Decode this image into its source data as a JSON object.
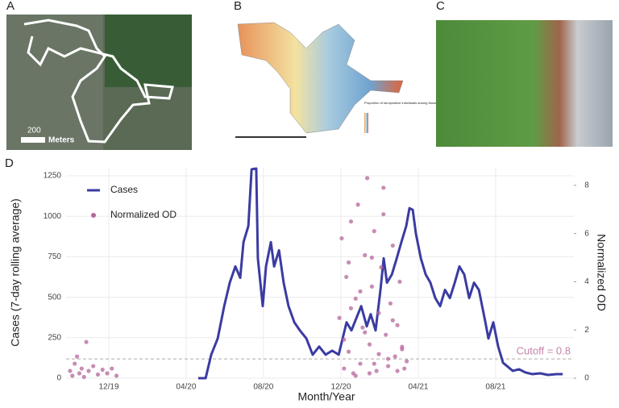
{
  "panels": {
    "a": {
      "label": "A",
      "scale_value": "200",
      "scale_unit": "Meters"
    },
    "b": {
      "label": "B",
      "legend_title": "Proportion of seropositive individuals among those tested"
    },
    "c": {
      "label": "C"
    },
    "d": {
      "label": "D"
    }
  },
  "chart_data": {
    "type": "line",
    "x_label": "Month/Year",
    "y_label": "Cases (7-day rolling average)",
    "y2_label": "Normalized OD",
    "xlim": [
      2019.733,
      2021.92
    ],
    "xticks": [
      {
        "value": 2019.917,
        "label": "12/19"
      },
      {
        "value": 2020.25,
        "label": "04/20"
      },
      {
        "value": 2020.583,
        "label": "08/20"
      },
      {
        "value": 2020.917,
        "label": "12/20"
      },
      {
        "value": 2021.25,
        "label": "04/21"
      },
      {
        "value": 2021.583,
        "label": "08/21"
      }
    ],
    "ylim": [
      0,
      1300
    ],
    "yticks": [
      0,
      250,
      500,
      750,
      1000,
      1250
    ],
    "y2lim": [
      0,
      8.73
    ],
    "y2ticks": [
      0,
      2,
      4,
      6,
      8
    ],
    "grid": true,
    "cutoff": {
      "value": 0.8,
      "label": "Cutoff = 0.8"
    },
    "series": [
      {
        "name": "Cases",
        "type": "line",
        "color": "#3b3ba3",
        "x": [
          2020.302,
          2020.334,
          2020.358,
          2020.386,
          2020.414,
          2020.438,
          2020.462,
          2020.483,
          2020.497,
          2020.518,
          2020.532,
          2020.552,
          2020.559,
          2020.58,
          2020.594,
          2020.615,
          2020.629,
          2020.65,
          2020.67,
          2020.691,
          2020.716,
          2020.74,
          2020.768,
          2020.795,
          2020.823,
          2020.851,
          2020.879,
          2020.907,
          2020.924,
          2020.941,
          2020.962,
          2020.983,
          2021.004,
          2021.028,
          2021.045,
          2021.066,
          2021.087,
          2021.101,
          2021.115,
          2021.136,
          2021.157,
          2021.177,
          2021.198,
          2021.212,
          2021.226,
          2021.24,
          2021.261,
          2021.282,
          2021.302,
          2021.323,
          2021.344,
          2021.365,
          2021.386,
          2021.407,
          2021.427,
          2021.448,
          2021.469,
          2021.49,
          2021.511,
          2021.525,
          2021.539,
          2021.552,
          2021.573,
          2021.594,
          2021.615,
          2021.636,
          2021.657,
          2021.684,
          2021.712,
          2021.74,
          2021.775,
          2021.809,
          2021.844,
          2021.872
        ],
        "values": [
          0,
          0,
          145,
          245,
          445,
          590,
          690,
          620,
          840,
          940,
          1290,
          1295,
          740,
          445,
          690,
          840,
          690,
          790,
          590,
          445,
          345,
          295,
          245,
          145,
          195,
          145,
          170,
          145,
          245,
          345,
          295,
          370,
          445,
          320,
          395,
          295,
          545,
          740,
          590,
          640,
          740,
          840,
          940,
          1050,
          1040,
          890,
          740,
          640,
          590,
          495,
          445,
          545,
          495,
          590,
          690,
          640,
          495,
          590,
          545,
          445,
          345,
          245,
          345,
          195,
          95,
          70,
          45,
          55,
          35,
          25,
          30,
          20,
          25,
          25
        ]
      },
      {
        "name": "Normalized OD",
        "type": "scatter",
        "axis": "y2",
        "color": "#b5669a",
        "x": [
          2019.75,
          2019.76,
          2019.77,
          2019.78,
          2019.79,
          2019.8,
          2019.81,
          2019.82,
          2019.83,
          2019.85,
          2019.87,
          2019.89,
          2019.91,
          2019.93,
          2019.95,
          2020.91,
          2020.92,
          2020.93,
          2020.94,
          2020.95,
          2020.96,
          2020.97,
          2020.98,
          2020.99,
          2021.0,
          2021.01,
          2021.02,
          2021.03,
          2021.04,
          2021.05,
          2021.06,
          2021.07,
          2021.08,
          2021.09,
          2021.1,
          2021.11,
          2021.12,
          2021.13,
          2021.14,
          2021.15,
          2021.16,
          2021.17,
          2021.18,
          2021.19,
          2021.2,
          2020.93,
          2020.96,
          2021.0,
          2021.04,
          2021.08,
          2021.12,
          2021.16,
          2021.05,
          2021.1,
          2021.02,
          2020.98,
          2021.14,
          2021.06,
          2021.18,
          2020.95
        ],
        "values": [
          0.3,
          0.1,
          0.6,
          0.9,
          0.2,
          0.4,
          0.05,
          1.5,
          0.3,
          0.5,
          0.15,
          0.35,
          0.2,
          0.4,
          0.1,
          2.5,
          5.8,
          0.4,
          4.2,
          1.1,
          6.5,
          0.2,
          3.3,
          7.2,
          0.6,
          2.1,
          5.1,
          8.3,
          1.4,
          3.8,
          6.1,
          0.3,
          2.7,
          4.6,
          7.9,
          1.8,
          0.5,
          3.1,
          5.5,
          0.9,
          2.2,
          4.0,
          1.2,
          0.4,
          0.7,
          1.6,
          2.9,
          3.6,
          0.2,
          1.0,
          0.8,
          0.3,
          5.0,
          6.8,
          1.9,
          0.1,
          2.4,
          0.6,
          1.3,
          4.8
        ]
      }
    ]
  }
}
